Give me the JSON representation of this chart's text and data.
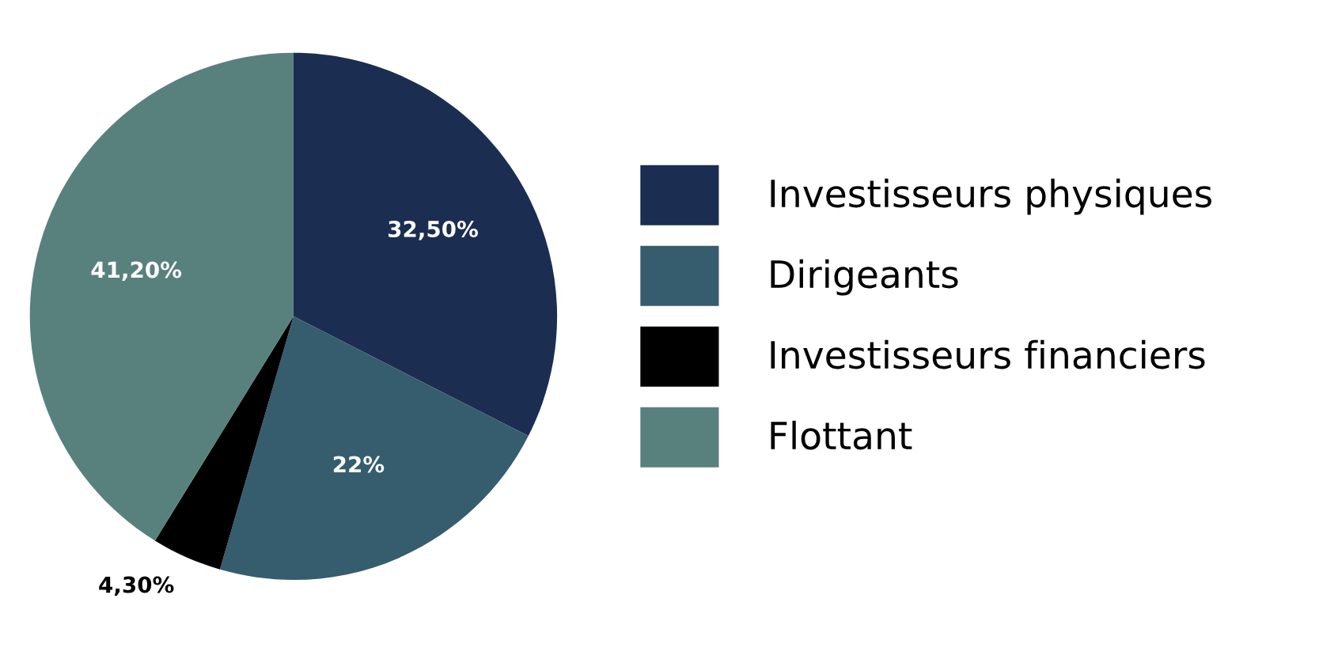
{
  "chart_data": {
    "type": "pie",
    "categories": [
      "Investisseurs physiques",
      "Dirigeants",
      "Investisseurs financiers",
      "Flottant"
    ],
    "values": [
      32.5,
      22,
      4.3,
      41.2
    ],
    "colors": [
      "#1c2d52",
      "#365d6e",
      "#000000",
      "#58817e"
    ],
    "value_labels": [
      "32,50%",
      "22%",
      "4,30%",
      "41,20%"
    ],
    "legend": "right"
  }
}
